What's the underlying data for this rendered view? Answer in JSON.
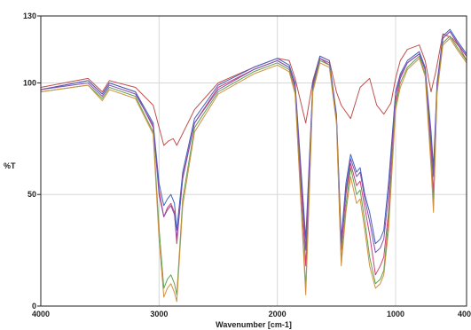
{
  "chart_data": {
    "type": "line",
    "title": "",
    "xlabel": "Wavenumber [cm-1]",
    "ylabel": "%T",
    "xlim": [
      4000,
      400
    ],
    "ylim": [
      0,
      130
    ],
    "x_reversed": true,
    "grid": true,
    "legend": "none",
    "xticks": [
      {
        "value": 4000,
        "label": "4000"
      },
      {
        "value": 3000,
        "label": "3000"
      },
      {
        "value": 2000,
        "label": "2000"
      },
      {
        "value": 1000,
        "label": "1000"
      },
      {
        "value": 400,
        "label": "400"
      }
    ],
    "yticks": [
      {
        "value": 0,
        "label": "0"
      },
      {
        "value": 50,
        "label": "50"
      },
      {
        "value": 100,
        "label": "100"
      },
      {
        "value": 130,
        "label": "130"
      }
    ],
    "series": [
      {
        "color": "#c0504d",
        "points": [
          [
            4000,
            98
          ],
          [
            3600,
            102
          ],
          [
            3480,
            96
          ],
          [
            3420,
            101
          ],
          [
            3200,
            98
          ],
          [
            3050,
            90
          ],
          [
            2960,
            72
          ],
          [
            2920,
            74
          ],
          [
            2880,
            75
          ],
          [
            2850,
            72
          ],
          [
            2700,
            88
          ],
          [
            2500,
            100
          ],
          [
            2200,
            107
          ],
          [
            2000,
            111
          ],
          [
            1900,
            110
          ],
          [
            1850,
            102
          ],
          [
            1760,
            82
          ],
          [
            1700,
            101
          ],
          [
            1640,
            112
          ],
          [
            1560,
            110
          ],
          [
            1500,
            96
          ],
          [
            1460,
            90
          ],
          [
            1380,
            84
          ],
          [
            1300,
            98
          ],
          [
            1220,
            102
          ],
          [
            1160,
            90
          ],
          [
            1100,
            86
          ],
          [
            1040,
            91
          ],
          [
            1000,
            102
          ],
          [
            960,
            110
          ],
          [
            900,
            115
          ],
          [
            800,
            117
          ],
          [
            750,
            110
          ],
          [
            700,
            96
          ],
          [
            660,
            105
          ],
          [
            600,
            122
          ],
          [
            520,
            120
          ],
          [
            460,
            116
          ],
          [
            400,
            110
          ]
        ]
      },
      {
        "color": "#d04070",
        "points": [
          [
            4000,
            97
          ],
          [
            3600,
            101
          ],
          [
            3480,
            95
          ],
          [
            3420,
            100
          ],
          [
            3200,
            96
          ],
          [
            3050,
            80
          ],
          [
            3000,
            52
          ],
          [
            2960,
            40
          ],
          [
            2930,
            44
          ],
          [
            2900,
            46
          ],
          [
            2870,
            42
          ],
          [
            2850,
            28
          ],
          [
            2800,
            58
          ],
          [
            2700,
            82
          ],
          [
            2500,
            98
          ],
          [
            2200,
            106
          ],
          [
            2000,
            110
          ],
          [
            1900,
            107
          ],
          [
            1850,
            98
          ],
          [
            1760,
            18
          ],
          [
            1700,
            98
          ],
          [
            1640,
            111
          ],
          [
            1560,
            108
          ],
          [
            1500,
            84
          ],
          [
            1460,
            25
          ],
          [
            1420,
            50
          ],
          [
            1380,
            64
          ],
          [
            1330,
            54
          ],
          [
            1300,
            56
          ],
          [
            1260,
            44
          ],
          [
            1220,
            32
          ],
          [
            1170,
            14
          ],
          [
            1130,
            18
          ],
          [
            1100,
            22
          ],
          [
            1060,
            42
          ],
          [
            1000,
            92
          ],
          [
            960,
            102
          ],
          [
            900,
            109
          ],
          [
            800,
            113
          ],
          [
            750,
            106
          ],
          [
            700,
            70
          ],
          [
            680,
            50
          ],
          [
            650,
            98
          ],
          [
            600,
            120
          ],
          [
            540,
            123
          ],
          [
            480,
            118
          ],
          [
            400,
            112
          ]
        ]
      },
      {
        "color": "#4060c0",
        "points": [
          [
            4000,
            97
          ],
          [
            3600,
            101
          ],
          [
            3480,
            95
          ],
          [
            3420,
            100
          ],
          [
            3200,
            96
          ],
          [
            3050,
            82
          ],
          [
            3000,
            55
          ],
          [
            2960,
            45
          ],
          [
            2930,
            48
          ],
          [
            2900,
            50
          ],
          [
            2870,
            46
          ],
          [
            2850,
            34
          ],
          [
            2800,
            60
          ],
          [
            2700,
            84
          ],
          [
            2500,
            99
          ],
          [
            2200,
            107
          ],
          [
            2000,
            111
          ],
          [
            1900,
            108
          ],
          [
            1850,
            100
          ],
          [
            1760,
            30
          ],
          [
            1700,
            100
          ],
          [
            1640,
            112
          ],
          [
            1560,
            110
          ],
          [
            1500,
            86
          ],
          [
            1460,
            30
          ],
          [
            1420,
            55
          ],
          [
            1380,
            68
          ],
          [
            1330,
            60
          ],
          [
            1300,
            62
          ],
          [
            1260,
            50
          ],
          [
            1220,
            42
          ],
          [
            1170,
            28
          ],
          [
            1130,
            30
          ],
          [
            1100,
            34
          ],
          [
            1060,
            55
          ],
          [
            1000,
            96
          ],
          [
            960,
            104
          ],
          [
            900,
            110
          ],
          [
            800,
            114
          ],
          [
            750,
            107
          ],
          [
            700,
            78
          ],
          [
            680,
            62
          ],
          [
            650,
            100
          ],
          [
            600,
            121
          ],
          [
            540,
            124
          ],
          [
            480,
            119
          ],
          [
            400,
            113
          ]
        ]
      },
      {
        "color": "#8050b0",
        "points": [
          [
            4000,
            97
          ],
          [
            3600,
            100
          ],
          [
            3480,
            94
          ],
          [
            3420,
            99
          ],
          [
            3200,
            95
          ],
          [
            3050,
            81
          ],
          [
            3000,
            50
          ],
          [
            2960,
            40
          ],
          [
            2930,
            43
          ],
          [
            2900,
            45
          ],
          [
            2870,
            41
          ],
          [
            2850,
            30
          ],
          [
            2800,
            57
          ],
          [
            2700,
            82
          ],
          [
            2500,
            97
          ],
          [
            2200,
            106
          ],
          [
            2000,
            110
          ],
          [
            1900,
            107
          ],
          [
            1850,
            99
          ],
          [
            1760,
            25
          ],
          [
            1700,
            99
          ],
          [
            1640,
            111
          ],
          [
            1560,
            109
          ],
          [
            1500,
            85
          ],
          [
            1460,
            28
          ],
          [
            1420,
            52
          ],
          [
            1380,
            66
          ],
          [
            1330,
            58
          ],
          [
            1300,
            60
          ],
          [
            1260,
            48
          ],
          [
            1220,
            38
          ],
          [
            1170,
            24
          ],
          [
            1130,
            26
          ],
          [
            1100,
            30
          ],
          [
            1060,
            50
          ],
          [
            1000,
            95
          ],
          [
            960,
            103
          ],
          [
            900,
            109
          ],
          [
            800,
            113
          ],
          [
            750,
            106
          ],
          [
            700,
            74
          ],
          [
            680,
            58
          ],
          [
            650,
            99
          ],
          [
            600,
            120
          ],
          [
            540,
            123
          ],
          [
            480,
            118
          ],
          [
            400,
            112
          ]
        ]
      },
      {
        "color": "#60a050",
        "points": [
          [
            4000,
            96
          ],
          [
            3600,
            99
          ],
          [
            3480,
            93
          ],
          [
            3420,
            98
          ],
          [
            3200,
            94
          ],
          [
            3050,
            78
          ],
          [
            3000,
            35
          ],
          [
            2960,
            8
          ],
          [
            2930,
            12
          ],
          [
            2900,
            14
          ],
          [
            2870,
            10
          ],
          [
            2850,
            5
          ],
          [
            2800,
            48
          ],
          [
            2700,
            80
          ],
          [
            2500,
            96
          ],
          [
            2200,
            105
          ],
          [
            2000,
            109
          ],
          [
            1900,
            106
          ],
          [
            1850,
            96
          ],
          [
            1760,
            8
          ],
          [
            1700,
            97
          ],
          [
            1640,
            110
          ],
          [
            1560,
            108
          ],
          [
            1500,
            83
          ],
          [
            1460,
            20
          ],
          [
            1420,
            45
          ],
          [
            1380,
            62
          ],
          [
            1330,
            50
          ],
          [
            1300,
            52
          ],
          [
            1260,
            38
          ],
          [
            1220,
            22
          ],
          [
            1170,
            10
          ],
          [
            1130,
            12
          ],
          [
            1100,
            16
          ],
          [
            1060,
            38
          ],
          [
            1000,
            90
          ],
          [
            960,
            100
          ],
          [
            900,
            107
          ],
          [
            800,
            112
          ],
          [
            750,
            104
          ],
          [
            700,
            65
          ],
          [
            680,
            45
          ],
          [
            650,
            96
          ],
          [
            600,
            118
          ],
          [
            540,
            121
          ],
          [
            480,
            116
          ],
          [
            400,
            110
          ]
        ]
      },
      {
        "color": "#d09040",
        "points": [
          [
            4000,
            96
          ],
          [
            3600,
            99
          ],
          [
            3480,
            92
          ],
          [
            3420,
            97
          ],
          [
            3200,
            93
          ],
          [
            3050,
            77
          ],
          [
            3000,
            30
          ],
          [
            2960,
            4
          ],
          [
            2930,
            8
          ],
          [
            2900,
            10
          ],
          [
            2870,
            6
          ],
          [
            2850,
            2
          ],
          [
            2800,
            45
          ],
          [
            2700,
            78
          ],
          [
            2500,
            95
          ],
          [
            2200,
            104
          ],
          [
            2000,
            108
          ],
          [
            1900,
            105
          ],
          [
            1850,
            95
          ],
          [
            1760,
            5
          ],
          [
            1700,
            96
          ],
          [
            1640,
            109
          ],
          [
            1560,
            107
          ],
          [
            1500,
            82
          ],
          [
            1460,
            18
          ],
          [
            1420,
            42
          ],
          [
            1380,
            58
          ],
          [
            1330,
            46
          ],
          [
            1300,
            48
          ],
          [
            1260,
            34
          ],
          [
            1220,
            18
          ],
          [
            1170,
            8
          ],
          [
            1130,
            10
          ],
          [
            1100,
            14
          ],
          [
            1060,
            34
          ],
          [
            1000,
            88
          ],
          [
            960,
            98
          ],
          [
            900,
            106
          ],
          [
            800,
            111
          ],
          [
            750,
            103
          ],
          [
            700,
            62
          ],
          [
            680,
            42
          ],
          [
            650,
            95
          ],
          [
            600,
            117
          ],
          [
            540,
            120
          ],
          [
            480,
            115
          ],
          [
            400,
            109
          ]
        ]
      }
    ]
  }
}
